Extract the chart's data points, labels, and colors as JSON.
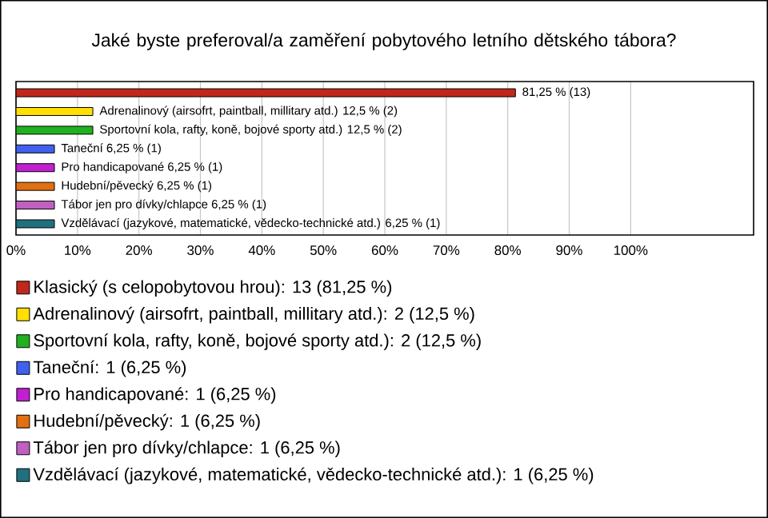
{
  "chart_data": {
    "type": "bar",
    "title": "Jaké byste preferoval/a zaměření pobytového letního dětského tábora?",
    "orientation": "horizontal",
    "categories": [
      null,
      null,
      null,
      null,
      null,
      null,
      null,
      null
    ],
    "series": [
      {
        "name": "Klasický (s celopobytovou hrou): 13 (81,25 %)",
        "color": "#c0281c",
        "values": [
          81.25,
          null,
          null,
          null,
          null,
          null,
          null,
          null
        ],
        "value_labels": [
          "81,25 % (13)",
          null,
          null,
          null,
          null,
          null,
          null,
          null
        ]
      },
      {
        "name": "Adrenalinový (airsofrt, paintball, millitary atd.): 2 (12,5 %)",
        "color": "#ffe000",
        "values": [
          null,
          12.5,
          null,
          null,
          null,
          null,
          null,
          null
        ],
        "value_labels": [
          null,
          "Adrenalinový (airsofrt, paintball, millitary atd.) 12,5 % (2)",
          null,
          null,
          null,
          null,
          null,
          null
        ]
      },
      {
        "name": "Sportovní kola, rafty, koně, bojové sporty atd.): 2 (12,5 %)",
        "color": "#20b020",
        "values": [
          null,
          null,
          12.5,
          null,
          null,
          null,
          null,
          null
        ],
        "value_labels": [
          null,
          null,
          "Sportovní kola, rafty, koně, bojové sporty atd.) 12,5 % (2)",
          null,
          null,
          null,
          null,
          null
        ]
      },
      {
        "name": "Taneční: 1 (6,25 %)",
        "color": "#4060f0",
        "values": [
          null,
          null,
          null,
          6.25,
          null,
          null,
          null,
          null
        ],
        "value_labels": [
          null,
          null,
          null,
          "Taneční 6,25 % (1)",
          null,
          null,
          null,
          null
        ]
      },
      {
        "name": "Pro handicapované: 1 (6,25 %)",
        "color": "#c020d0",
        "values": [
          null,
          null,
          null,
          null,
          6.25,
          null,
          null,
          null
        ],
        "value_labels": [
          null,
          null,
          null,
          null,
          "Pro handicapované 6,25 % (1)",
          null,
          null,
          null
        ]
      },
      {
        "name": "Hudební/pěvecký: 1 (6,25 %)",
        "color": "#e07010",
        "values": [
          null,
          null,
          null,
          null,
          null,
          6.25,
          null,
          null
        ],
        "value_labels": [
          null,
          null,
          null,
          null,
          null,
          "Hudební/pěvecký 6,25 % (1)",
          null,
          null
        ]
      },
      {
        "name": "Tábor jen pro dívky/chlapce: 1 (6,25 %)",
        "color": "#c060c0",
        "values": [
          null,
          null,
          null,
          null,
          null,
          null,
          6.25,
          null
        ],
        "value_labels": [
          null,
          null,
          null,
          null,
          null,
          null,
          "Tábor jen pro dívky/chlapce 6,25 % (1)",
          null
        ]
      },
      {
        "name": "Vzdělávací (jazykové, matematické, vědecko-technické atd.): 1 (6,25 %)",
        "color": "#207080",
        "values": [
          null,
          null,
          null,
          null,
          null,
          null,
          null,
          6.25
        ],
        "value_labels": [
          null,
          null,
          null,
          null,
          null,
          null,
          null,
          "Vzdělávací (jazykové, matematické, vědecko-technické atd.) 6,25 % (1)"
        ]
      }
    ],
    "xlim": [
      0,
      120
    ],
    "xticks": [
      {
        "value": 0,
        "label": "0%"
      },
      {
        "value": 10,
        "label": "10%"
      },
      {
        "value": 20,
        "label": "20%"
      },
      {
        "value": 30,
        "label": "30%"
      },
      {
        "value": 40,
        "label": "40%"
      },
      {
        "value": 50,
        "label": "50%"
      },
      {
        "value": 60,
        "label": "60%"
      },
      {
        "value": 70,
        "label": "70%"
      },
      {
        "value": 80,
        "label": "80%"
      },
      {
        "value": 90,
        "label": "90%"
      },
      {
        "value": 100,
        "label": "100%"
      }
    ],
    "grid": "x",
    "legend": "bottom"
  }
}
